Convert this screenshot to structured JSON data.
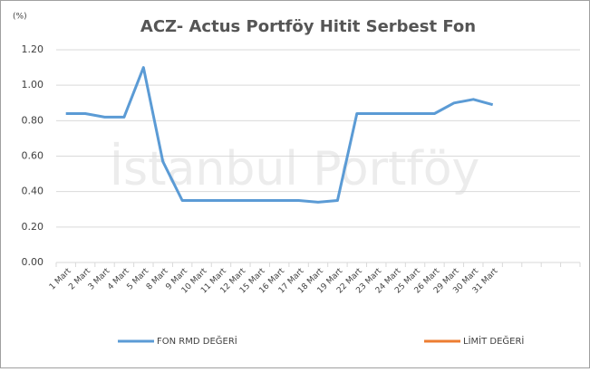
{
  "chart_data": {
    "type": "line",
    "title": "ACZ- Actus Portföy Hitit Serbest Fon",
    "y_label": "(%)",
    "watermark": "İstanbul Portföy",
    "categories": [
      "1 Mart",
      "2 Mart",
      "3 Mart",
      "4 Mart",
      "5 Mart",
      "8 Mart",
      "9 Mart",
      "10 Mart",
      "11 Mart",
      "12 Mart",
      "15 Mart",
      "16 Mart",
      "17 Mart",
      "18 Mart",
      "19 Mart",
      "22 Mart",
      "23 Mart",
      "24 Mart",
      "25 Mart",
      "26 Mart",
      "29 Mart",
      "30 Mart",
      "31 Mart",
      null,
      null,
      null,
      null
    ],
    "series": [
      {
        "name": "FON RMD DEĞERİ",
        "color": "#5b9bd5",
        "values": [
          0.84,
          0.84,
          0.82,
          0.82,
          1.1,
          0.57,
          0.35,
          0.35,
          0.35,
          0.35,
          0.35,
          0.35,
          0.35,
          0.34,
          0.35,
          0.84,
          0.84,
          0.84,
          0.84,
          0.84,
          0.9,
          0.92,
          0.89,
          null,
          null,
          null,
          null
        ]
      },
      {
        "name": "LİMİT DEĞERİ",
        "color": "#ed7d31",
        "values": [
          null,
          null,
          null,
          null,
          null,
          null,
          null,
          null,
          null,
          null,
          null,
          null,
          null,
          null,
          null,
          null,
          null,
          null,
          null,
          null,
          null,
          null,
          null,
          null,
          null,
          null,
          null
        ]
      }
    ],
    "ylim": [
      0,
      1.2
    ],
    "yticks": [
      {
        "value": 0,
        "label": "0.00"
      },
      {
        "value": 0.2,
        "label": "0.20"
      },
      {
        "value": 0.4,
        "label": "0.40"
      },
      {
        "value": 0.6,
        "label": "0.60"
      },
      {
        "value": 0.8,
        "label": "0.80"
      },
      {
        "value": 1.0,
        "label": "1.00"
      },
      {
        "value": 1.2,
        "label": "1.20"
      }
    ],
    "grid": true,
    "legend": "bottom"
  }
}
